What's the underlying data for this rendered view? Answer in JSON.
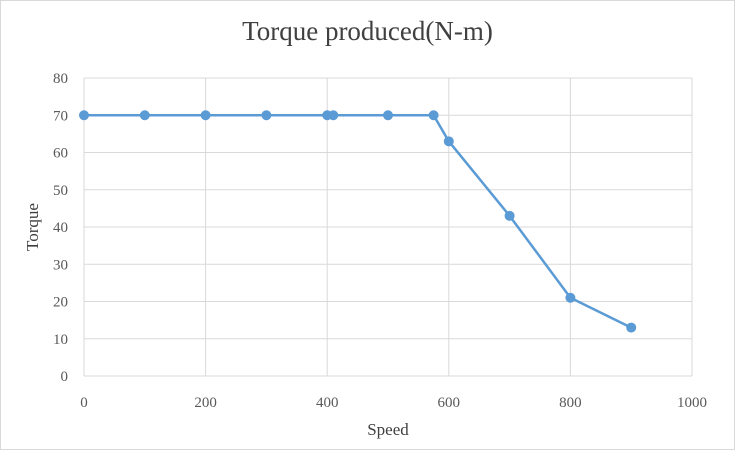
{
  "chart_data": {
    "type": "line",
    "title": "Torque produced(N-m)",
    "xlabel": "Speed",
    "ylabel": "Torque",
    "xlim": [
      0,
      1000
    ],
    "ylim": [
      0,
      80
    ],
    "xticks": [
      0,
      200,
      400,
      600,
      800,
      1000
    ],
    "yticks": [
      0,
      10,
      20,
      30,
      40,
      50,
      60,
      70,
      80
    ],
    "grid": true,
    "legend": "none",
    "series": [
      {
        "color": "#5b9bd5",
        "points": [
          {
            "x": 0,
            "y": 70
          },
          {
            "x": 100,
            "y": 70
          },
          {
            "x": 200,
            "y": 70
          },
          {
            "x": 300,
            "y": 70
          },
          {
            "x": 400,
            "y": 70
          },
          {
            "x": 410,
            "y": 70
          },
          {
            "x": 500,
            "y": 70
          },
          {
            "x": 575,
            "y": 70
          },
          {
            "x": 600,
            "y": 63
          },
          {
            "x": 700,
            "y": 43
          },
          {
            "x": 800,
            "y": 21
          },
          {
            "x": 900,
            "y": 13
          }
        ]
      }
    ]
  }
}
